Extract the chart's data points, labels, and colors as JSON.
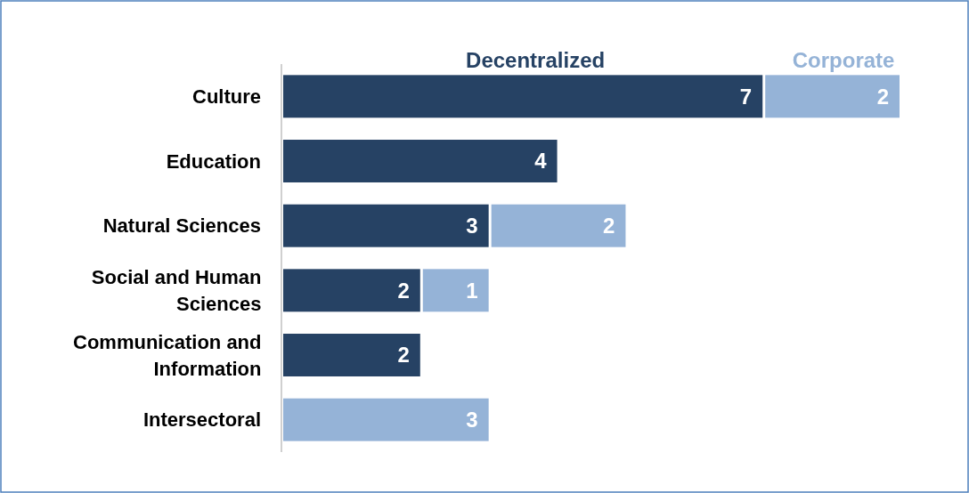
{
  "chart_data": {
    "type": "bar",
    "orientation": "horizontal",
    "stacked": true,
    "data_labels": true,
    "legend": "top",
    "categories": [
      "Culture",
      "Education",
      "Natural Sciences",
      "Social and Human Sciences",
      "Communication and Information",
      "Intersectoral"
    ],
    "series": [
      {
        "name": "Decentralized",
        "color": "#264264",
        "values": [
          7,
          4,
          3,
          2,
          2,
          null
        ]
      },
      {
        "name": "Corporate",
        "color": "#95b3d7",
        "values": [
          2,
          null,
          2,
          1,
          null,
          3
        ]
      }
    ]
  }
}
